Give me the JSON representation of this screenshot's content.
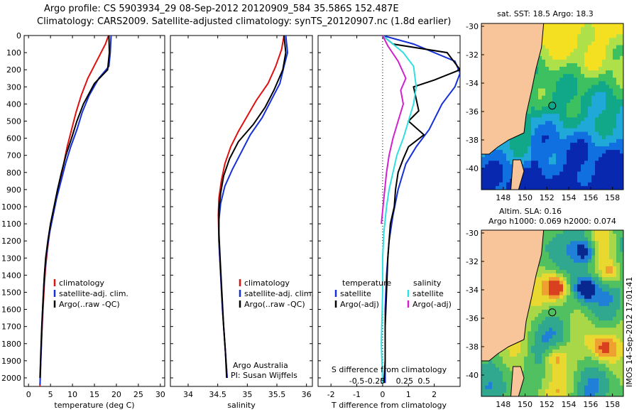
{
  "header": {
    "line1": "Argo profile: CS 5903934_29 08-Sep-2012 20120909_584 35.586S 152.487E",
    "line2": "Climatology: CARS2009. Satellite-adjusted climatology: synTS_20120907.nc (1.8d earlier)"
  },
  "map_titles": {
    "sst": "sat. SST: 18.5 Argo: 18.3",
    "sla_line1": "Altim. SLA: 0.16",
    "sla_line2": "Argo h1000: 0.069 h2000: 0.074"
  },
  "credits": {
    "line1": "Argo Australia",
    "line2": "PI: Susan Wijffels"
  },
  "stamp": "IMOS 14-Sep-2012 17:01:41",
  "colors": {
    "climatology": "#e01010",
    "satellite": "#1530d8",
    "argo": "#000000",
    "sat_s": "#30e0e0",
    "argo_s": "#d020d0",
    "land": "#f8c49a"
  },
  "chart_data": [
    {
      "type": "line",
      "xlabel": "temperature (deg C)",
      "ylabel": "",
      "xlim": [
        -1,
        31
      ],
      "ylim": [
        2050,
        0
      ],
      "xticks": [
        0,
        5,
        10,
        15,
        20,
        25,
        30
      ],
      "yticks": [
        0,
        100,
        200,
        300,
        400,
        500,
        600,
        700,
        800,
        900,
        1000,
        1100,
        1200,
        1300,
        1400,
        1500,
        1600,
        1700,
        1800,
        1900,
        2000
      ],
      "legend": {
        "position": "bottom-center",
        "entries": [
          "climatology",
          "satellite-adj. clim.",
          "Argo(..raw -QC)"
        ]
      },
      "series": [
        {
          "name": "climatology",
          "color": "#e01010",
          "points": [
            [
              18.2,
              0
            ],
            [
              17.5,
              50
            ],
            [
              15.5,
              150
            ],
            [
              13.5,
              250
            ],
            [
              12.0,
              350
            ],
            [
              10.8,
              450
            ],
            [
              9.8,
              550
            ],
            [
              8.8,
              650
            ],
            [
              8.0,
              750
            ],
            [
              7.2,
              850
            ],
            [
              6.3,
              950
            ],
            [
              5.6,
              1050
            ],
            [
              4.8,
              1150
            ],
            [
              4.3,
              1250
            ],
            [
              3.9,
              1350
            ],
            [
              3.6,
              1450
            ],
            [
              3.3,
              1600
            ],
            [
              3.0,
              1750
            ],
            [
              2.8,
              1900
            ],
            [
              2.6,
              2050
            ]
          ]
        },
        {
          "name": "satellite-adj. clim.",
          "color": "#1530d8",
          "points": [
            [
              18.8,
              0
            ],
            [
              18.6,
              100
            ],
            [
              18.3,
              180
            ],
            [
              16.0,
              250
            ],
            [
              13.8,
              350
            ],
            [
              12.2,
              450
            ],
            [
              11.0,
              550
            ],
            [
              9.6,
              650
            ],
            [
              8.4,
              750
            ],
            [
              7.4,
              850
            ],
            [
              6.4,
              950
            ],
            [
              5.6,
              1050
            ],
            [
              4.8,
              1150
            ],
            [
              4.2,
              1250
            ],
            [
              3.8,
              1350
            ],
            [
              3.5,
              1450
            ],
            [
              3.2,
              1600
            ],
            [
              3.0,
              1750
            ],
            [
              2.8,
              1900
            ],
            [
              2.6,
              2040
            ]
          ]
        },
        {
          "name": "Argo(..raw -QC)",
          "color": "#000000",
          "points": [
            [
              18.3,
              0
            ],
            [
              18.4,
              100
            ],
            [
              18.0,
              200
            ],
            [
              15.0,
              280
            ],
            [
              12.5,
              400
            ],
            [
              11.0,
              500
            ],
            [
              9.8,
              600
            ],
            [
              8.5,
              700
            ],
            [
              7.5,
              800
            ],
            [
              6.6,
              900
            ],
            [
              5.8,
              1000
            ],
            [
              5.0,
              1100
            ],
            [
              4.4,
              1200
            ],
            [
              3.9,
              1300
            ],
            [
              3.6,
              1400
            ],
            [
              3.3,
              1550
            ],
            [
              3.0,
              1700
            ],
            [
              2.8,
              1850
            ],
            [
              2.6,
              2000
            ]
          ]
        }
      ]
    },
    {
      "type": "line",
      "xlabel": "salinity",
      "ylabel": "",
      "xlim": [
        33.7,
        36.1
      ],
      "ylim": [
        2050,
        0
      ],
      "xticks": [
        34,
        34.5,
        35,
        35.5,
        36
      ],
      "legend": {
        "position": "bottom-center",
        "entries": [
          "climatology",
          "satellite-adj. clim.",
          "Argo(..raw -QC)"
        ]
      },
      "series": [
        {
          "name": "climatology",
          "color": "#e01010",
          "points": [
            [
              35.62,
              0
            ],
            [
              35.58,
              80
            ],
            [
              35.48,
              180
            ],
            [
              35.35,
              280
            ],
            [
              35.15,
              380
            ],
            [
              35.0,
              470
            ],
            [
              34.85,
              560
            ],
            [
              34.72,
              650
            ],
            [
              34.62,
              750
            ],
            [
              34.56,
              850
            ],
            [
              34.52,
              950
            ],
            [
              34.51,
              1050
            ],
            [
              34.52,
              1200
            ],
            [
              34.55,
              1400
            ],
            [
              34.58,
              1600
            ],
            [
              34.62,
              1800
            ],
            [
              34.66,
              2000
            ]
          ]
        },
        {
          "name": "satellite-adj. clim.",
          "color": "#1530d8",
          "points": [
            [
              35.65,
              0
            ],
            [
              35.68,
              100
            ],
            [
              35.62,
              180
            ],
            [
              35.55,
              280
            ],
            [
              35.4,
              380
            ],
            [
              35.25,
              480
            ],
            [
              35.05,
              580
            ],
            [
              34.9,
              680
            ],
            [
              34.75,
              780
            ],
            [
              34.62,
              880
            ],
            [
              34.55,
              980
            ],
            [
              34.52,
              1080
            ],
            [
              34.52,
              1200
            ],
            [
              34.55,
              1400
            ],
            [
              34.58,
              1600
            ],
            [
              34.62,
              1800
            ],
            [
              34.66,
              2000
            ]
          ]
        },
        {
          "name": "Argo(..raw -QC)",
          "color": "#000000",
          "points": [
            [
              35.62,
              0
            ],
            [
              35.65,
              100
            ],
            [
              35.6,
              200
            ],
            [
              35.45,
              320
            ],
            [
              35.3,
              420
            ],
            [
              35.1,
              520
            ],
            [
              34.85,
              620
            ],
            [
              34.7,
              720
            ],
            [
              34.6,
              820
            ],
            [
              34.55,
              920
            ],
            [
              34.52,
              1020
            ],
            [
              34.52,
              1150
            ],
            [
              34.54,
              1300
            ],
            [
              34.57,
              1500
            ],
            [
              34.6,
              1700
            ],
            [
              34.63,
              1850
            ],
            [
              34.65,
              2000
            ]
          ]
        }
      ]
    },
    {
      "type": "line",
      "xlabel": "T difference from climatology",
      "top_xlabel": "S difference from climatology",
      "ylabel": "",
      "xlim": [
        -2.5,
        3
      ],
      "ylim": [
        2050,
        0
      ],
      "xticks_T": [
        -2,
        -1,
        0,
        1,
        2
      ],
      "xticks_S": [
        "-0.5",
        "-0.25",
        "0",
        "0.25",
        "0.5"
      ],
      "legend": {
        "position": "bottom-center",
        "groups": [
          {
            "heading": "temperature",
            "entries": [
              "satellite",
              "Argo(-adj)"
            ]
          },
          {
            "heading": "salinity",
            "entries": [
              "satellite",
              "Argo(-adj)"
            ]
          }
        ]
      },
      "series": [
        {
          "name": "temperature satellite",
          "color": "#1530d8",
          "points": [
            [
              0.0,
              0
            ],
            [
              1.2,
              50
            ],
            [
              2.8,
              150
            ],
            [
              3.0,
              220
            ],
            [
              2.8,
              300
            ],
            [
              2.3,
              400
            ],
            [
              1.8,
              550
            ],
            [
              1.3,
              650
            ],
            [
              0.9,
              750
            ],
            [
              0.6,
              900
            ],
            [
              0.4,
              1050
            ],
            [
              0.25,
              1200
            ],
            [
              0.15,
              1400
            ],
            [
              0.1,
              1600
            ],
            [
              0.1,
              1800
            ],
            [
              0.1,
              2030
            ]
          ]
        },
        {
          "name": "temperature Argo(-adj)",
          "color": "#000000",
          "points": [
            [
              0.0,
              0
            ],
            [
              0.4,
              50
            ],
            [
              2.5,
              100
            ],
            [
              3.0,
              200
            ],
            [
              2.0,
              260
            ],
            [
              1.2,
              300
            ],
            [
              1.4,
              440
            ],
            [
              1.0,
              500
            ],
            [
              1.6,
              580
            ],
            [
              1.0,
              650
            ],
            [
              0.8,
              720
            ],
            [
              0.6,
              800
            ],
            [
              0.5,
              900
            ],
            [
              0.45,
              1000
            ],
            [
              0.3,
              1100
            ],
            [
              0.2,
              1300
            ],
            [
              0.15,
              1500
            ],
            [
              0.1,
              1700
            ],
            [
              0.1,
              1900
            ],
            [
              0.05,
              2030
            ]
          ]
        },
        {
          "name": "salinity satellite",
          "color": "#30e0e0",
          "points": [
            [
              0.0,
              0
            ],
            [
              0.4,
              50
            ],
            [
              0.8,
              100
            ],
            [
              1.2,
              180
            ],
            [
              1.3,
              300
            ],
            [
              1.2,
              400
            ],
            [
              1.0,
              500
            ],
            [
              0.8,
              600
            ],
            [
              0.55,
              700
            ],
            [
              0.4,
              800
            ],
            [
              0.25,
              900
            ],
            [
              0.15,
              1000
            ],
            [
              0.05,
              1150
            ],
            [
              0.0,
              1300
            ],
            [
              0.0,
              1500
            ],
            [
              -0.05,
              1800
            ],
            [
              0.0,
              2030
            ]
          ]
        },
        {
          "name": "salinity Argo(-adj)",
          "color": "#d020d0",
          "points": [
            [
              0.0,
              0
            ],
            [
              0.2,
              60
            ],
            [
              0.6,
              150
            ],
            [
              0.9,
              250
            ],
            [
              0.7,
              320
            ],
            [
              0.8,
              400
            ],
            [
              0.6,
              500
            ],
            [
              0.4,
              600
            ],
            [
              0.25,
              700
            ],
            [
              0.15,
              800
            ],
            [
              0.05,
              950
            ],
            [
              -0.05,
              1100
            ]
          ]
        }
      ]
    },
    {
      "type": "heatmap",
      "title": "sat. SST: 18.5 Argo: 18.3",
      "xlim": [
        146,
        159
      ],
      "ylim": [
        -41.5,
        -29.8
      ],
      "xticks": [
        148,
        150,
        152,
        154,
        156,
        158
      ],
      "yticks": [
        -30,
        -32,
        -34,
        -36,
        -38,
        -40
      ],
      "argo_position": [
        152.487,
        -35.586
      ]
    },
    {
      "type": "heatmap",
      "title": "Altim. SLA: 0.16",
      "subtitle": "Argo h1000: 0.069 h2000: 0.074",
      "xlim": [
        146,
        159
      ],
      "ylim": [
        -41.5,
        -29.8
      ],
      "xticks": [
        148,
        150,
        152,
        154,
        156,
        158
      ],
      "yticks": [
        -30,
        -32,
        -34,
        -36,
        -38,
        -40
      ],
      "argo_position": [
        152.487,
        -35.586
      ]
    }
  ]
}
